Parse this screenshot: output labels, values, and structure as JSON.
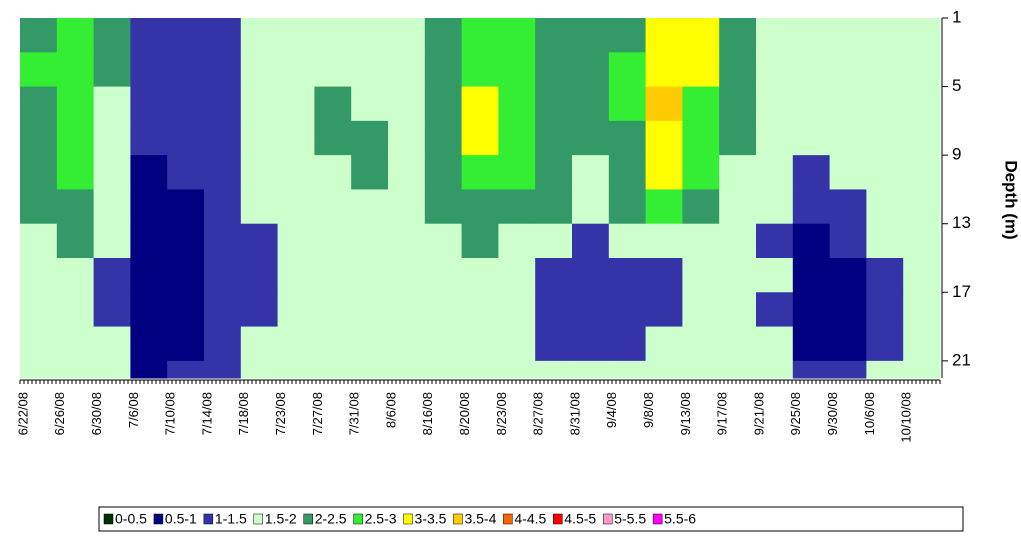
{
  "chart_data": {
    "type": "heatmap",
    "ylabel": "Depth (m)",
    "x": [
      "6/22/08",
      "6/26/08",
      "6/30/08",
      "7/6/08",
      "7/10/08",
      "7/14/08",
      "7/18/08",
      "7/23/08",
      "7/27/08",
      "7/31/08",
      "8/6/08",
      "8/16/08",
      "8/20/08",
      "8/23/08",
      "8/27/08",
      "8/31/08",
      "9/4/08",
      "9/8/08",
      "9/13/08",
      "9/17/08",
      "9/21/08",
      "9/25/08",
      "9/30/08",
      "10/6/08",
      "10/10/08"
    ],
    "y": [
      1,
      3,
      5,
      7,
      9,
      11,
      13,
      15,
      17,
      19,
      21
    ],
    "ylim": [
      1,
      22
    ],
    "yticks": [
      1,
      5,
      9,
      13,
      17,
      21
    ],
    "y_reversed": true,
    "levels": [
      0,
      0.5,
      1,
      1.5,
      2,
      2.5,
      3,
      3.5,
      4,
      4.5,
      5,
      5.5,
      6
    ],
    "legend": [
      {
        "name": "0-0.5",
        "color": "#003300"
      },
      {
        "name": "0.5-1",
        "color": "#000080"
      },
      {
        "name": "1-1.5",
        "color": "#3434a8"
      },
      {
        "name": "1.5-2",
        "color": "#ccffcc"
      },
      {
        "name": "2-2.5",
        "color": "#339966"
      },
      {
        "name": "2.5-3",
        "color": "#33ee33"
      },
      {
        "name": "3-3.5",
        "color": "#ffff00"
      },
      {
        "name": "3.5-4",
        "color": "#ffcc00"
      },
      {
        "name": "4-4.5",
        "color": "#ff6600"
      },
      {
        "name": "4.5-5",
        "color": "#ff0000"
      },
      {
        "name": "5-5.5",
        "color": "#ff99cc"
      },
      {
        "name": "5.5-6",
        "color": "#ff00ff"
      }
    ],
    "values": [
      [
        2.4,
        2.6,
        2.2,
        1.2,
        1.1,
        1.3,
        1.6,
        1.8,
        1.7,
        1.9,
        1.8,
        2.0,
        2.6,
        2.7,
        2.1,
        2.3,
        2.4,
        3.3,
        3.1,
        2.2,
        1.8,
        1.7,
        1.6,
        1.8,
        1.7
      ],
      [
        2.5,
        2.7,
        2.0,
        1.1,
        1.2,
        1.4,
        1.7,
        1.8,
        1.9,
        1.8,
        1.9,
        2.1,
        2.8,
        2.9,
        2.2,
        2.2,
        2.5,
        3.4,
        3.0,
        2.1,
        1.9,
        1.8,
        1.7,
        1.7,
        1.8
      ],
      [
        2.3,
        2.8,
        1.9,
        1.0,
        1.2,
        1.3,
        1.6,
        1.7,
        2.0,
        1.9,
        1.8,
        2.2,
        3.1,
        2.9,
        2.3,
        2.1,
        2.6,
        3.5,
        2.9,
        2.0,
        1.8,
        1.9,
        1.6,
        1.8,
        1.9
      ],
      [
        2.4,
        2.6,
        1.8,
        1.0,
        1.1,
        1.3,
        1.7,
        1.8,
        2.1,
        2.1,
        1.9,
        2.3,
        3.0,
        2.8,
        2.4,
        2.0,
        2.4,
        3.3,
        2.8,
        2.1,
        1.7,
        1.8,
        1.7,
        1.7,
        1.8
      ],
      [
        2.2,
        2.5,
        1.7,
        0.9,
        1.0,
        1.2,
        1.6,
        1.8,
        1.9,
        2.0,
        1.8,
        2.2,
        2.7,
        2.6,
        2.2,
        1.9,
        2.3,
        3.0,
        2.6,
        1.9,
        1.6,
        1.4,
        1.5,
        1.7,
        1.8
      ],
      [
        2.1,
        2.3,
        1.6,
        0.9,
        0.9,
        1.1,
        1.5,
        1.7,
        1.8,
        1.9,
        1.7,
        2.0,
        2.4,
        2.3,
        2.0,
        1.8,
        2.1,
        2.6,
        2.3,
        1.8,
        1.5,
        1.1,
        1.2,
        1.6,
        1.7
      ],
      [
        1.9,
        2.0,
        1.5,
        0.8,
        0.9,
        1.0,
        1.4,
        1.6,
        1.7,
        1.8,
        1.6,
        1.8,
        2.0,
        1.9,
        1.5,
        1.4,
        1.5,
        1.8,
        1.9,
        1.7,
        1.4,
        0.9,
        1.0,
        1.5,
        1.6
      ],
      [
        1.8,
        1.9,
        1.4,
        0.9,
        0.8,
        1.0,
        1.3,
        1.7,
        1.6,
        1.7,
        1.7,
        1.7,
        1.9,
        1.7,
        1.2,
        1.3,
        1.3,
        1.4,
        1.6,
        1.8,
        1.5,
        0.8,
        0.9,
        1.4,
        1.7
      ],
      [
        1.9,
        1.8,
        1.4,
        0.9,
        0.9,
        1.1,
        1.4,
        1.6,
        1.7,
        1.8,
        1.6,
        1.8,
        1.8,
        1.6,
        1.1,
        1.2,
        1.2,
        1.3,
        1.5,
        1.7,
        1.4,
        0.7,
        0.8,
        1.3,
        1.6
      ],
      [
        1.8,
        1.9,
        1.5,
        0.8,
        0.9,
        1.0,
        1.5,
        1.7,
        1.8,
        1.7,
        1.7,
        1.9,
        1.7,
        1.6,
        1.3,
        1.3,
        1.4,
        1.5,
        1.7,
        1.8,
        1.5,
        0.8,
        0.9,
        1.4,
        1.7
      ],
      [
        1.8,
        1.7,
        1.6,
        0.9,
        1.0,
        1.1,
        1.6,
        1.8,
        1.7,
        1.8,
        1.8,
        1.8,
        1.8,
        1.7,
        1.5,
        1.5,
        1.6,
        1.6,
        1.8,
        1.7,
        1.6,
        1.0,
        1.0,
        1.5,
        1.8
      ]
    ]
  }
}
